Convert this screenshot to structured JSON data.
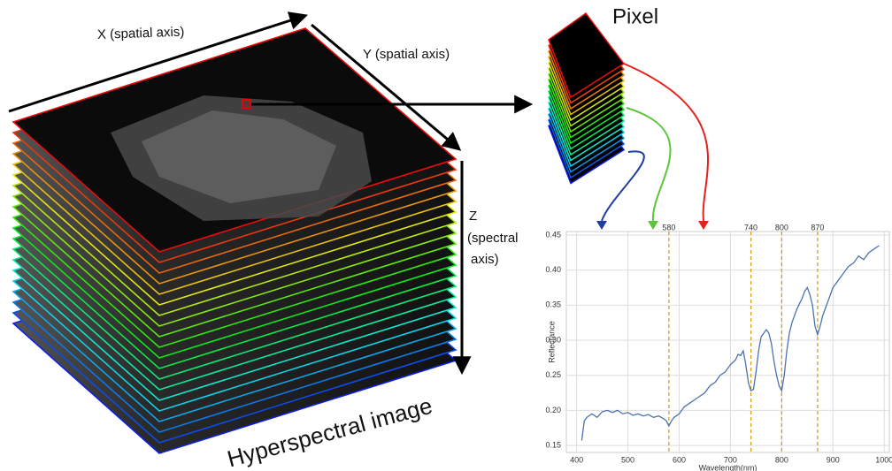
{
  "diagram": {
    "x_axis_label": "X (spatial axis)",
    "y_axis_label": "Y (spatial axis)",
    "z_axis_label": [
      "Z",
      "(spectral",
      "axis)"
    ],
    "caption": "Hyperspectral image",
    "pixel_label": "Pixel"
  },
  "chart_data": {
    "type": "line",
    "x_label": "Wavelength(nm)",
    "y_label": "Reflectance",
    "color": "#4c72b0",
    "x": [
      410,
      415,
      420,
      430,
      440,
      450,
      460,
      470,
      480,
      490,
      500,
      510,
      520,
      530,
      540,
      550,
      560,
      570,
      575,
      580,
      585,
      590,
      600,
      610,
      620,
      630,
      640,
      650,
      660,
      670,
      680,
      690,
      700,
      710,
      715,
      720,
      725,
      730,
      735,
      740,
      745,
      750,
      755,
      760,
      765,
      770,
      775,
      780,
      785,
      790,
      795,
      800,
      805,
      810,
      815,
      820,
      830,
      840,
      845,
      850,
      855,
      860,
      865,
      870,
      875,
      880,
      890,
      900,
      910,
      920,
      930,
      940,
      950,
      960,
      970,
      980,
      990
    ],
    "values": [
      0.157,
      0.185,
      0.19,
      0.195,
      0.19,
      0.198,
      0.2,
      0.197,
      0.2,
      0.195,
      0.197,
      0.193,
      0.195,
      0.192,
      0.194,
      0.19,
      0.192,
      0.188,
      0.185,
      0.178,
      0.185,
      0.19,
      0.195,
      0.205,
      0.21,
      0.215,
      0.22,
      0.225,
      0.235,
      0.24,
      0.25,
      0.255,
      0.265,
      0.272,
      0.28,
      0.278,
      0.285,
      0.265,
      0.24,
      0.228,
      0.23,
      0.255,
      0.285,
      0.305,
      0.31,
      0.315,
      0.31,
      0.295,
      0.27,
      0.25,
      0.235,
      0.228,
      0.25,
      0.285,
      0.31,
      0.325,
      0.345,
      0.36,
      0.37,
      0.375,
      0.365,
      0.35,
      0.32,
      0.308,
      0.32,
      0.335,
      0.355,
      0.375,
      0.385,
      0.395,
      0.405,
      0.41,
      0.42,
      0.415,
      0.425,
      0.43,
      0.435
    ],
    "markers": {
      "values": [
        580,
        740,
        800,
        870
      ],
      "color": "#d4a017"
    },
    "xlim": [
      380,
      1010
    ],
    "ylim": [
      0.14,
      0.455
    ],
    "xticks": [
      400,
      500,
      600,
      700,
      800,
      900,
      1000
    ],
    "yticks": [
      0.15,
      {
        "value": 0.2,
        "label": "0.20"
      },
      0.25,
      {
        "value": 0.3,
        "label": "0.30"
      },
      0.35,
      {
        "value": 0.4,
        "label": "0.40"
      },
      0.45
    ],
    "grid": true
  }
}
